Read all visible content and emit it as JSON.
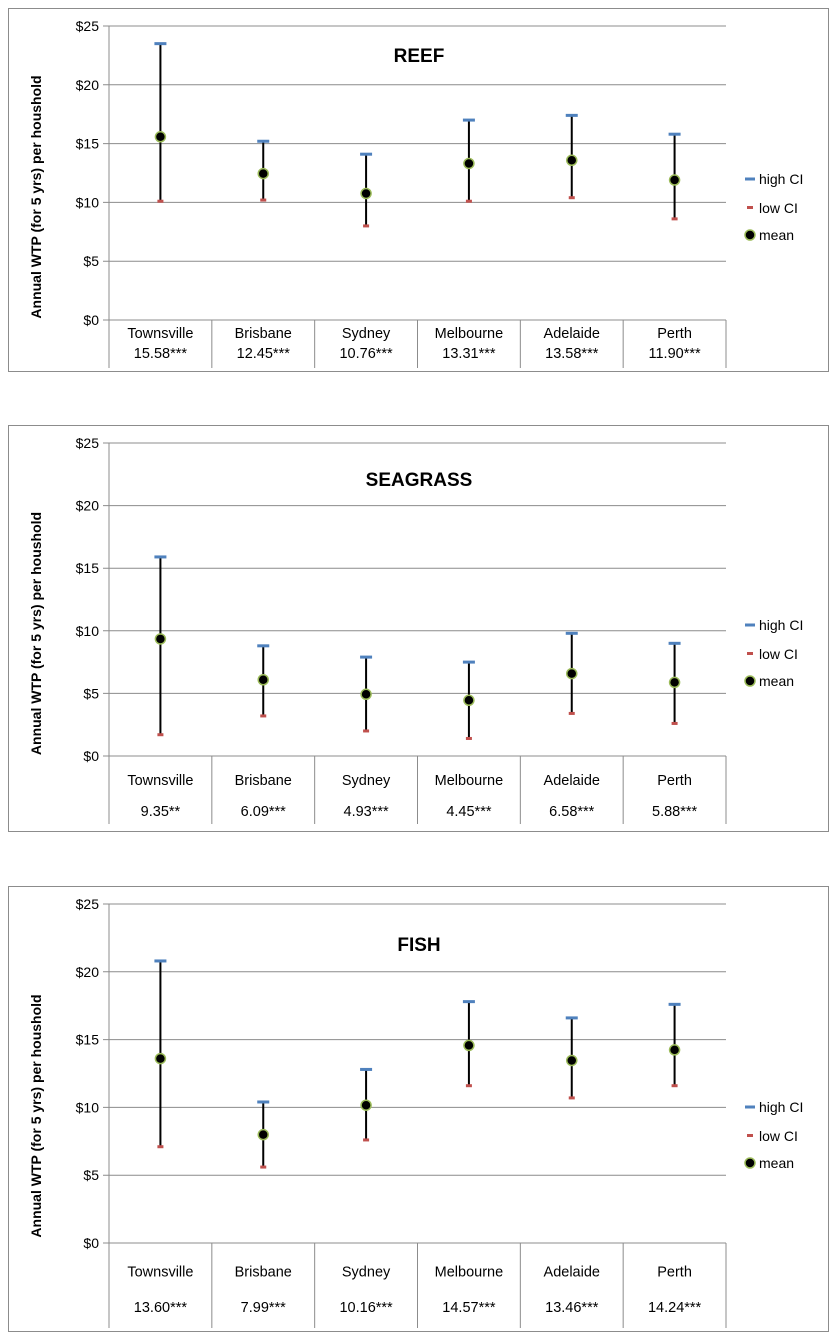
{
  "y_axis_label": "Annual WTP (for 5 yrs) per houshold",
  "legend": {
    "high": "high CI",
    "low": "low CI",
    "mean": "mean"
  },
  "colors": {
    "high_ci": "#4f81bd",
    "low_ci": "#c0504d",
    "mean_fill": "#000000",
    "mean_edge": "#9bbb59",
    "grid": "#8c8c8c",
    "whisker": "#000000"
  },
  "chart_data": [
    {
      "type": "scatter",
      "title": "REEF",
      "categories": [
        "Townsville",
        "Brisbane",
        "Sydney",
        "Melbourne",
        "Adelaide",
        "Perth"
      ],
      "value_labels": [
        "15.58***",
        "12.45***",
        "10.76***",
        "13.31***",
        "13.58***",
        "11.90***"
      ],
      "ylim": [
        0,
        25
      ],
      "yticks": [
        "$0",
        "$5",
        "$10",
        "$15",
        "$20",
        "$25"
      ],
      "grid": true,
      "legend_position": "right",
      "series": [
        {
          "name": "high CI",
          "values": [
            23.5,
            15.2,
            14.1,
            17.0,
            17.4,
            15.8
          ]
        },
        {
          "name": "low CI",
          "values": [
            10.1,
            10.2,
            8.0,
            10.1,
            10.4,
            8.6
          ]
        },
        {
          "name": "mean",
          "values": [
            15.58,
            12.45,
            10.76,
            13.31,
            13.58,
            11.9
          ]
        }
      ]
    },
    {
      "type": "scatter",
      "title": "SEAGRASS",
      "categories": [
        "Townsville",
        "Brisbane",
        "Sydney",
        "Melbourne",
        "Adelaide",
        "Perth"
      ],
      "value_labels": [
        "9.35**",
        "6.09***",
        "4.93***",
        "4.45***",
        "6.58***",
        "5.88***"
      ],
      "ylim": [
        0,
        25
      ],
      "yticks": [
        "$0",
        "$5",
        "$10",
        "$15",
        "$20",
        "$25"
      ],
      "grid": true,
      "legend_position": "right",
      "series": [
        {
          "name": "high CI",
          "values": [
            15.9,
            8.8,
            7.9,
            7.5,
            9.8,
            9.0
          ]
        },
        {
          "name": "low CI",
          "values": [
            1.7,
            3.2,
            2.0,
            1.4,
            3.4,
            2.6
          ]
        },
        {
          "name": "mean",
          "values": [
            9.35,
            6.09,
            4.93,
            4.45,
            6.58,
            5.88
          ]
        }
      ]
    },
    {
      "type": "scatter",
      "title": "FISH",
      "categories": [
        "Townsville",
        "Brisbane",
        "Sydney",
        "Melbourne",
        "Adelaide",
        "Perth"
      ],
      "value_labels": [
        "13.60***",
        "7.99***",
        "10.16***",
        "14.57***",
        "13.46***",
        "14.24***"
      ],
      "ylim": [
        0,
        25
      ],
      "yticks": [
        "$0",
        "$5",
        "$10",
        "$15",
        "$20",
        "$25"
      ],
      "grid": true,
      "legend_position": "right",
      "series": [
        {
          "name": "high CI",
          "values": [
            20.8,
            10.4,
            12.8,
            17.8,
            16.6,
            17.6
          ]
        },
        {
          "name": "low CI",
          "values": [
            7.1,
            5.6,
            7.6,
            11.6,
            10.7,
            11.6
          ]
        },
        {
          "name": "mean",
          "values": [
            13.6,
            7.99,
            10.16,
            14.57,
            13.46,
            14.24
          ]
        }
      ]
    }
  ]
}
